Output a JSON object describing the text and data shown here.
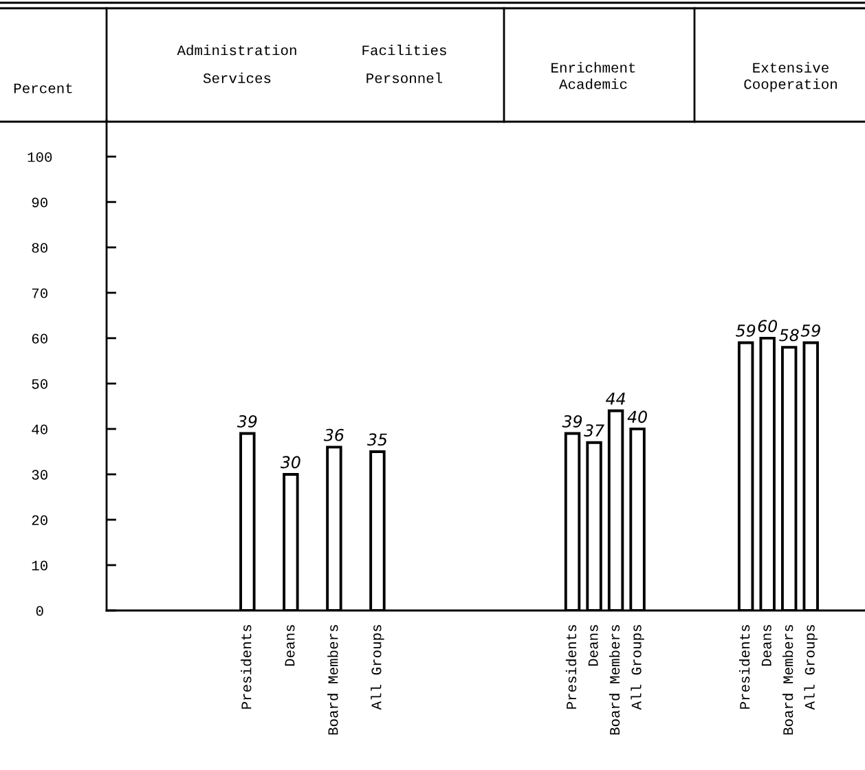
{
  "chart_data": {
    "type": "bar",
    "ylabel": "Percent",
    "annotations": [
      "Administration\nServices",
      "Facilities\nPersonnel",
      "Enrichment\nAcademic",
      "Extensive\nCooperation"
    ],
    "categories": [
      null,
      null,
      null,
      null,
      null,
      null,
      "Presidents",
      null,
      "Deans",
      null,
      "Board Members",
      null,
      "All Groups",
      null,
      null,
      null,
      null,
      null,
      null,
      null,
      null,
      "Presidents",
      "Deans",
      "Board Members",
      "All Groups",
      null,
      null,
      null,
      null,
      "Presidents",
      "Deans",
      "Board Members",
      "All Groups",
      null,
      null
    ],
    "values": [
      null,
      null,
      null,
      null,
      null,
      null,
      39,
      null,
      30,
      null,
      36,
      null,
      35,
      null,
      null,
      null,
      null,
      null,
      null,
      null,
      null,
      39,
      37,
      44,
      40,
      null,
      null,
      null,
      null,
      59,
      60,
      58,
      59,
      null,
      null
    ],
    "color": "#ffffff",
    "ylim": [
      0,
      108
    ],
    "yticks": [
      0,
      10,
      20,
      30,
      40,
      50,
      60,
      70,
      80,
      90,
      100
    ],
    "data_labels": true,
    "grid": false,
    "legend": false
  }
}
